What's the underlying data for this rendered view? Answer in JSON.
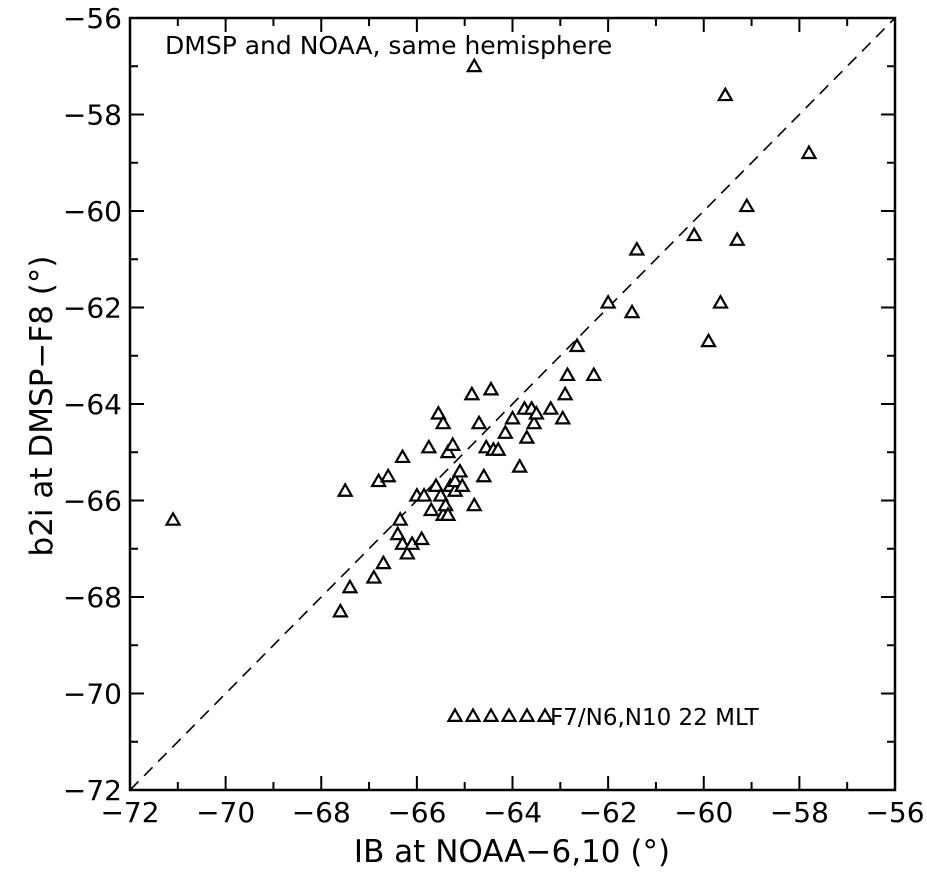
{
  "chart_data": {
    "type": "scatter",
    "title": "DMSP and NOAA, same hemisphere",
    "xlabel": "IB at NOAA−6,10 (°)",
    "ylabel": "b2i at DMSP−F8 (°)",
    "xlim": [
      -72,
      -56
    ],
    "ylim": [
      -72,
      -56
    ],
    "xticks": [
      -72,
      -70,
      -68,
      -66,
      -64,
      -62,
      -60,
      -58,
      -56
    ],
    "yticks": [
      -72,
      -70,
      -68,
      -66,
      -64,
      -62,
      -60,
      -58,
      -56
    ],
    "xtick_labels": [
      "−72",
      "−70",
      "−68",
      "−66",
      "−64",
      "−62",
      "−60",
      "−58",
      "−56"
    ],
    "ytick_labels": [
      "−72",
      "−70",
      "−68",
      "−66",
      "−64",
      "−62",
      "−60",
      "−58",
      "−56"
    ],
    "grid": false,
    "reference_line": "y = x (dashed)",
    "legend": {
      "label": "F7/N6,N10  22 MLT",
      "placement": "bottom-right"
    },
    "series": [
      {
        "name": "F7/N6,N10  22 MLT",
        "marker": "triangle",
        "points": [
          [
            -71.1,
            -66.4
          ],
          [
            -67.6,
            -68.3
          ],
          [
            -67.5,
            -65.8
          ],
          [
            -67.4,
            -67.8
          ],
          [
            -66.9,
            -67.6
          ],
          [
            -66.8,
            -65.6
          ],
          [
            -66.7,
            -67.3
          ],
          [
            -66.6,
            -65.5
          ],
          [
            -66.4,
            -66.7
          ],
          [
            -66.35,
            -66.4
          ],
          [
            -66.3,
            -66.9
          ],
          [
            -66.3,
            -65.1
          ],
          [
            -66.2,
            -67.1
          ],
          [
            -66.1,
            -66.9
          ],
          [
            -66.0,
            -65.9
          ],
          [
            -65.9,
            -66.8
          ],
          [
            -65.85,
            -65.9
          ],
          [
            -65.75,
            -64.9
          ],
          [
            -65.7,
            -66.2
          ],
          [
            -65.6,
            -65.7
          ],
          [
            -65.55,
            -64.2
          ],
          [
            -65.5,
            -65.9
          ],
          [
            -65.45,
            -66.3
          ],
          [
            -65.45,
            -64.4
          ],
          [
            -65.4,
            -66.1
          ],
          [
            -65.35,
            -65.0
          ],
          [
            -65.35,
            -66.3
          ],
          [
            -65.3,
            -65.7
          ],
          [
            -65.25,
            -64.85
          ],
          [
            -65.2,
            -65.8
          ],
          [
            -65.2,
            -65.6
          ],
          [
            -65.1,
            -65.4
          ],
          [
            -65.05,
            -65.7
          ],
          [
            -64.85,
            -63.8
          ],
          [
            -64.8,
            -66.1
          ],
          [
            -64.7,
            -64.4
          ],
          [
            -64.6,
            -65.5
          ],
          [
            -64.55,
            -64.9
          ],
          [
            -64.45,
            -63.7
          ],
          [
            -64.4,
            -64.95
          ],
          [
            -64.3,
            -64.95
          ],
          [
            -64.15,
            -64.6
          ],
          [
            -64.0,
            -64.3
          ],
          [
            -63.85,
            -65.3
          ],
          [
            -63.75,
            -64.1
          ],
          [
            -63.7,
            -64.7
          ],
          [
            -63.6,
            -64.1
          ],
          [
            -63.55,
            -64.4
          ],
          [
            -63.5,
            -64.2
          ],
          [
            -63.2,
            -64.1
          ],
          [
            -62.95,
            -64.3
          ],
          [
            -62.9,
            -63.8
          ],
          [
            -62.85,
            -63.4
          ],
          [
            -62.65,
            -62.8
          ],
          [
            -62.3,
            -63.4
          ],
          [
            -62.0,
            -61.9
          ],
          [
            -61.5,
            -62.1
          ],
          [
            -61.4,
            -60.8
          ],
          [
            -60.2,
            -60.5
          ],
          [
            -59.9,
            -62.7
          ],
          [
            -59.65,
            -61.9
          ],
          [
            -59.55,
            -57.6
          ],
          [
            -59.3,
            -60.6
          ],
          [
            -59.1,
            -59.9
          ],
          [
            -57.8,
            -58.8
          ],
          [
            -64.8,
            -57.0
          ]
        ]
      }
    ]
  }
}
